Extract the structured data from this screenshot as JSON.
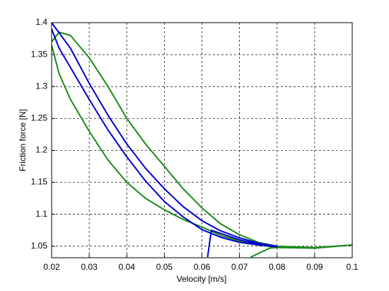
{
  "chart_data": {
    "type": "line",
    "xlabel": "Velocity [m/s]",
    "ylabel": "Friction force [N]",
    "xlim": [
      0.02,
      0.1
    ],
    "ylim": [
      1.032,
      1.4
    ],
    "xticks": [
      0.02,
      0.03,
      0.04,
      0.05,
      0.06,
      0.07,
      0.08,
      0.09,
      0.1
    ],
    "yticks": [
      1.05,
      1.1,
      1.15,
      1.2,
      1.25,
      1.3,
      1.35,
      1.4
    ],
    "grid": true,
    "series": [
      {
        "color": "#1a8a1a",
        "x": [
          0.073,
          0.078,
          0.08,
          null,
          0.02,
          0.022,
          0.025,
          0.03,
          0.035,
          0.04,
          0.045,
          0.05,
          0.055,
          0.06,
          0.065,
          0.07,
          0.075,
          0.08,
          0.09,
          0.1,
          0.09,
          0.08,
          0.075,
          0.07,
          0.065,
          0.06,
          0.055,
          0.05,
          0.045,
          0.04,
          0.035,
          0.03,
          0.025,
          0.022,
          0.02
        ],
        "values": [
          1.033,
          1.047,
          1.048,
          null,
          1.37,
          1.385,
          1.38,
          1.345,
          1.3,
          1.25,
          1.21,
          1.175,
          1.14,
          1.11,
          1.085,
          1.068,
          1.056,
          1.05,
          1.048,
          1.052,
          1.047,
          1.048,
          1.052,
          1.058,
          1.067,
          1.08,
          1.092,
          1.107,
          1.125,
          1.15,
          1.185,
          1.23,
          1.28,
          1.32,
          1.365
        ]
      },
      {
        "color": "#0000cc",
        "x": [
          0.0615,
          0.0625,
          0.065,
          0.07,
          0.075,
          0.08,
          null,
          0.02,
          0.025,
          0.03,
          0.035,
          0.04,
          0.045,
          0.05,
          0.055,
          0.06,
          0.065,
          0.07,
          0.075,
          0.08,
          0.075,
          0.07,
          0.065,
          0.06,
          0.055,
          0.05,
          0.045,
          0.04,
          0.035,
          0.03,
          0.025,
          0.022,
          0.02
        ],
        "values": [
          1.033,
          1.075,
          1.07,
          1.06,
          1.053,
          1.049,
          null,
          1.4,
          1.36,
          1.305,
          1.255,
          1.21,
          1.172,
          1.14,
          1.112,
          1.09,
          1.074,
          1.063,
          1.055,
          1.05,
          1.052,
          1.056,
          1.064,
          1.076,
          1.096,
          1.12,
          1.152,
          1.19,
          1.232,
          1.28,
          1.33,
          1.36,
          1.39
        ]
      }
    ]
  }
}
